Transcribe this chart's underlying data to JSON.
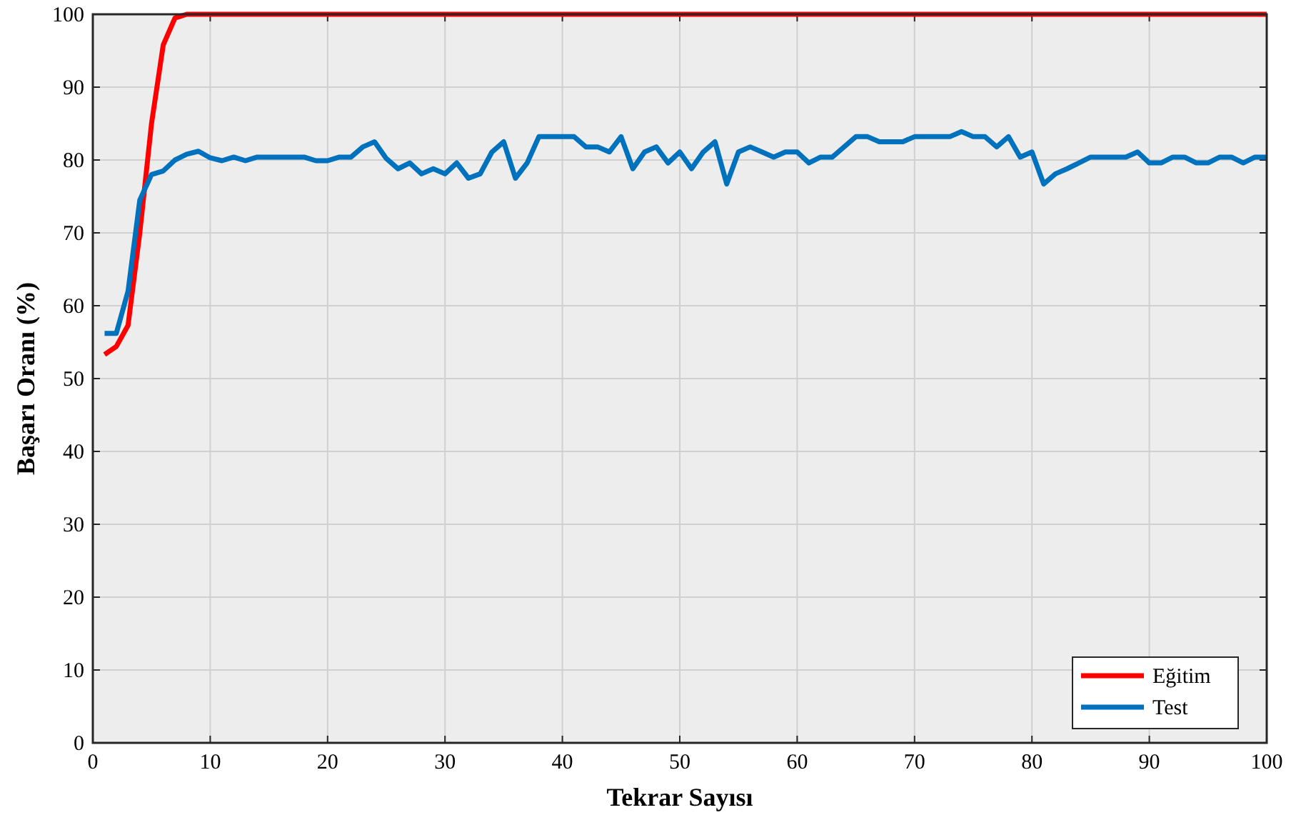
{
  "chart_data": {
    "type": "line",
    "xlabel": "Tekrar Sayısı",
    "ylabel": "Başarı Oranı (%)",
    "x": [
      1,
      2,
      3,
      4,
      5,
      6,
      7,
      8,
      9,
      10,
      11,
      12,
      13,
      14,
      15,
      16,
      17,
      18,
      19,
      20,
      21,
      22,
      23,
      24,
      25,
      26,
      27,
      28,
      29,
      30,
      31,
      32,
      33,
      34,
      35,
      36,
      37,
      38,
      39,
      40,
      41,
      42,
      43,
      44,
      45,
      46,
      47,
      48,
      49,
      50,
      51,
      52,
      53,
      54,
      55,
      56,
      57,
      58,
      59,
      60,
      61,
      62,
      63,
      64,
      65,
      66,
      67,
      68,
      69,
      70,
      71,
      72,
      73,
      74,
      75,
      76,
      77,
      78,
      79,
      80,
      81,
      82,
      83,
      84,
      85,
      86,
      87,
      88,
      89,
      90,
      91,
      92,
      93,
      94,
      95,
      96,
      97,
      98,
      99,
      100
    ],
    "series": [
      {
        "name": "Eğitim",
        "color": "#ff0000",
        "values": [
          53.3,
          54.4,
          57.3,
          70,
          85,
          95.8,
          99.5,
          100,
          100,
          100,
          100,
          100,
          100,
          100,
          100,
          100,
          100,
          100,
          100,
          100,
          100,
          100,
          100,
          100,
          100,
          100,
          100,
          100,
          100,
          100,
          100,
          100,
          100,
          100,
          100,
          100,
          100,
          100,
          100,
          100,
          100,
          100,
          100,
          100,
          100,
          100,
          100,
          100,
          100,
          100,
          100,
          100,
          100,
          100,
          100,
          100,
          100,
          100,
          100,
          100,
          100,
          100,
          100,
          100,
          100,
          100,
          100,
          100,
          100,
          100,
          100,
          100,
          100,
          100,
          100,
          100,
          100,
          100,
          100,
          100,
          100,
          100,
          100,
          100,
          100,
          100,
          100,
          100,
          100,
          100,
          100,
          100,
          100,
          100,
          100,
          100,
          100,
          100,
          100,
          100
        ]
      },
      {
        "name": "Test",
        "color": "#0072bd",
        "values": [
          56.2,
          56.2,
          62,
          74.5,
          78,
          78.5,
          80,
          80.8,
          81.2,
          80.3,
          79.9,
          80.4,
          79.9,
          80.4,
          80.4,
          80.4,
          80.4,
          80.4,
          79.9,
          79.9,
          80.4,
          80.4,
          81.8,
          82.5,
          80.2,
          78.8,
          79.6,
          78.1,
          78.8,
          78.1,
          79.6,
          77.5,
          78.1,
          81.1,
          82.5,
          77.5,
          79.6,
          83.2,
          83.2,
          83.2,
          83.2,
          81.8,
          81.8,
          81.1,
          83.2,
          78.8,
          81.1,
          81.8,
          79.6,
          81.1,
          78.8,
          81.1,
          82.5,
          76.7,
          81.1,
          81.8,
          81.1,
          80.4,
          81.1,
          81.1,
          79.6,
          80.4,
          80.4,
          81.8,
          83.2,
          83.2,
          82.5,
          82.5,
          82.5,
          83.2,
          83.2,
          83.2,
          83.2,
          83.9,
          83.2,
          83.2,
          81.8,
          83.2,
          80.4,
          81.1,
          76.7,
          78.1,
          78.8,
          79.6,
          80.4,
          80.4,
          80.4,
          80.4,
          81.1,
          79.6,
          79.6,
          80.4,
          80.4,
          79.6,
          79.6,
          80.4,
          80.4,
          79.6,
          80.4,
          80.4
        ]
      }
    ],
    "xlim": [
      0,
      100
    ],
    "xticks": [
      0,
      10,
      20,
      30,
      40,
      50,
      60,
      70,
      80,
      90,
      100
    ],
    "ylim": [
      0,
      100
    ],
    "yticks": [
      0,
      10,
      20,
      30,
      40,
      50,
      60,
      70,
      80,
      90,
      100
    ],
    "grid": true,
    "legend": "bottom right",
    "line_style": "solid"
  }
}
